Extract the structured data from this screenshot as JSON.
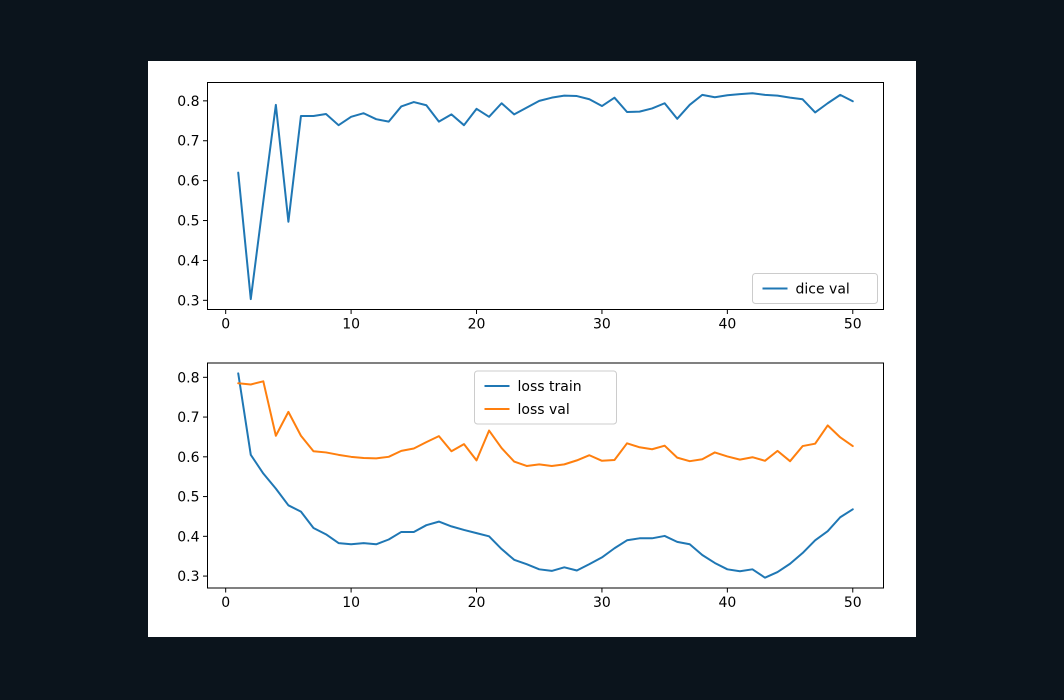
{
  "page": {
    "background_color": "#0b141c"
  },
  "figure": {
    "background_color": "#ffffff"
  },
  "colors": {
    "blue": "#1f77b4",
    "orange": "#ff7f0e",
    "axis": "#000000",
    "legend_border": "#cccccc",
    "legend_fill": "#ffffff"
  },
  "chart_data": [
    {
      "type": "line",
      "title": "",
      "xlabel": "",
      "ylabel": "",
      "x_start": 1,
      "x_step": 1,
      "xlim": [
        -1.45,
        52.45
      ],
      "ylim": [
        0.277,
        0.846
      ],
      "xticks": [
        0,
        10,
        20,
        30,
        40,
        50
      ],
      "yticks": [
        0.3,
        0.4,
        0.5,
        0.6,
        0.7,
        0.8
      ],
      "grid": false,
      "legend": {
        "loc": "lower right",
        "entries": [
          "dice val"
        ]
      },
      "series": [
        {
          "name": "dice val",
          "color": "#1f77b4",
          "values": [
            0.62,
            0.303,
            0.548,
            0.79,
            0.497,
            0.762,
            0.762,
            0.767,
            0.739,
            0.76,
            0.769,
            0.754,
            0.748,
            0.786,
            0.797,
            0.789,
            0.748,
            0.766,
            0.739,
            0.78,
            0.76,
            0.794,
            0.766,
            0.783,
            0.8,
            0.808,
            0.813,
            0.812,
            0.804,
            0.787,
            0.808,
            0.772,
            0.773,
            0.781,
            0.794,
            0.755,
            0.79,
            0.815,
            0.809,
            0.814,
            0.817,
            0.819,
            0.815,
            0.813,
            0.808,
            0.804,
            0.771,
            0.794,
            0.815,
            0.799
          ]
        }
      ]
    },
    {
      "type": "line",
      "title": "",
      "xlabel": "",
      "ylabel": "",
      "x_start": 1,
      "x_step": 1,
      "xlim": [
        -1.45,
        52.45
      ],
      "ylim": [
        0.27,
        0.836
      ],
      "xticks": [
        0,
        10,
        20,
        30,
        40,
        50
      ],
      "yticks": [
        0.3,
        0.4,
        0.5,
        0.6,
        0.7,
        0.8
      ],
      "grid": false,
      "legend": {
        "loc": "upper center",
        "entries": [
          "loss train",
          "loss val"
        ]
      },
      "series": [
        {
          "name": "loss train",
          "color": "#1f77b4",
          "values": [
            0.81,
            0.605,
            0.558,
            0.52,
            0.478,
            0.462,
            0.421,
            0.405,
            0.383,
            0.38,
            0.383,
            0.38,
            0.392,
            0.411,
            0.411,
            0.428,
            0.437,
            0.425,
            0.416,
            0.408,
            0.4,
            0.368,
            0.341,
            0.33,
            0.317,
            0.313,
            0.322,
            0.314,
            0.33,
            0.347,
            0.37,
            0.39,
            0.395,
            0.395,
            0.401,
            0.386,
            0.38,
            0.353,
            0.333,
            0.317,
            0.312,
            0.317,
            0.296,
            0.31,
            0.331,
            0.358,
            0.39,
            0.413,
            0.448,
            0.468
          ]
        },
        {
          "name": "loss val",
          "color": "#ff7f0e",
          "values": [
            0.785,
            0.782,
            0.79,
            0.653,
            0.713,
            0.653,
            0.614,
            0.611,
            0.605,
            0.6,
            0.597,
            0.596,
            0.6,
            0.615,
            0.621,
            0.637,
            0.652,
            0.614,
            0.632,
            0.591,
            0.666,
            0.622,
            0.588,
            0.577,
            0.581,
            0.577,
            0.581,
            0.591,
            0.604,
            0.59,
            0.592,
            0.634,
            0.624,
            0.619,
            0.628,
            0.598,
            0.589,
            0.594,
            0.611,
            0.601,
            0.593,
            0.599,
            0.59,
            0.615,
            0.589,
            0.627,
            0.633,
            0.679,
            0.649,
            0.627
          ]
        }
      ]
    }
  ]
}
